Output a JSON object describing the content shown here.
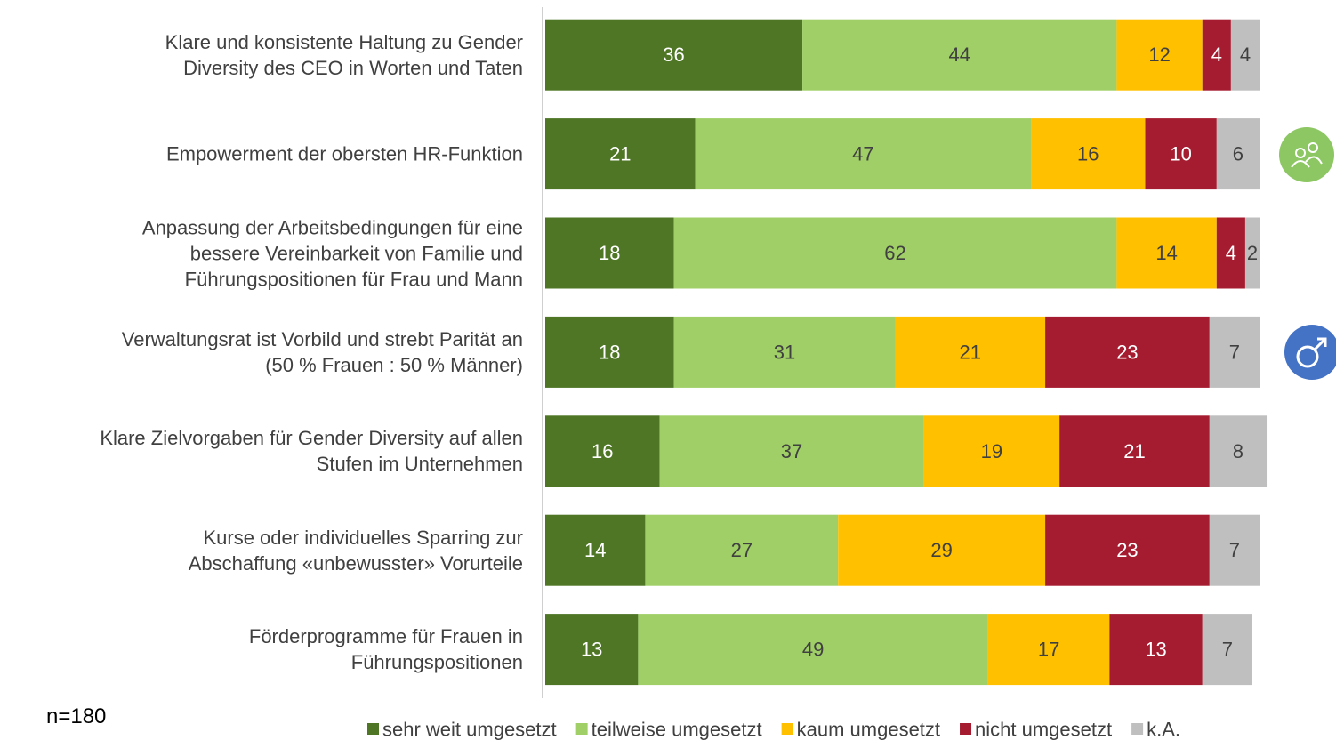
{
  "chart_data": {
    "type": "stacked-bar-horizontal",
    "categories": [
      "Klare und konsistente Haltung zu Gender\nDiversity des CEO in Worten und Taten",
      "Empowerment der obersten HR-Funktion",
      "Anpassung der Arbeitsbedingungen für eine\nbessere Vereinbarkeit von Familie und\nFührungspositionen für Frau und Mann",
      "Verwaltungsrat ist Vorbild und strebt Parität an\n(50 % Frauen : 50 % Männer)",
      "Klare Zielvorgaben für Gender Diversity auf allen\nStufen im Unternehmen",
      "Kurse oder individuelles Sparring zur\nAbschaffung «unbewusster» Vorurteile",
      "Förderprogramme für Frauen in\nFührungspositionen"
    ],
    "series": [
      {
        "name": "sehr weit umgesetzt",
        "color": "#4e7625",
        "values": [
          36,
          21,
          18,
          18,
          16,
          14,
          13
        ]
      },
      {
        "name": "teilweise umgesetzt",
        "color": "#a0cf67",
        "values": [
          44,
          47,
          62,
          31,
          37,
          27,
          49
        ]
      },
      {
        "name": "kaum umgesetzt",
        "color": "#ffc000",
        "values": [
          12,
          16,
          14,
          21,
          19,
          29,
          17
        ]
      },
      {
        "name": "nicht umgesetzt",
        "color": "#a51b2f",
        "values": [
          4,
          10,
          4,
          23,
          21,
          23,
          13
        ]
      },
      {
        "name": "k.A.",
        "color": "#bfbfbf",
        "values": [
          4,
          6,
          2,
          7,
          8,
          7,
          7
        ]
      }
    ],
    "xlim": [
      0,
      100
    ],
    "note": "n=180"
  }
}
